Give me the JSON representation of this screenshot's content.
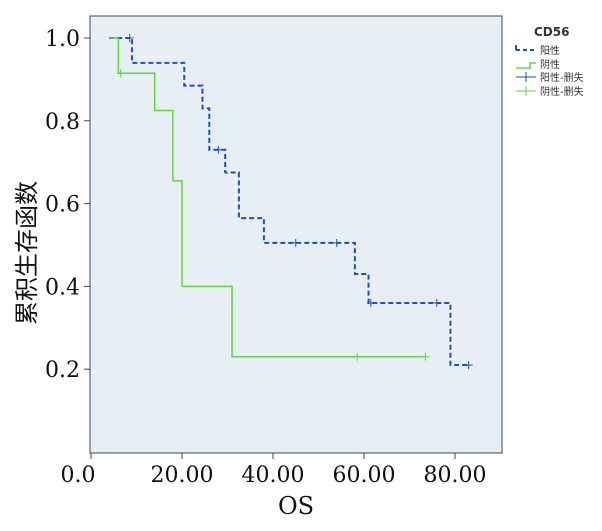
{
  "chart_data": {
    "type": "line",
    "subtype": "kaplan-meier",
    "xlabel": "OS",
    "ylabel": "累积生存函数",
    "xlim": [
      0,
      88
    ],
    "ylim": [
      0.0,
      1.0
    ],
    "x_ticks": [
      "0.0",
      "20.00",
      "40.00",
      "60.00",
      "80.00"
    ],
    "x_tick_values": [
      0,
      20,
      40,
      60,
      80
    ],
    "y_ticks": [
      "0.2",
      "0.4",
      "0.6",
      "0.8",
      "1.0"
    ],
    "y_tick_values": [
      0.2,
      0.4,
      0.6,
      0.8,
      1.0
    ],
    "grid": false,
    "background": "#e8eff4",
    "legend": {
      "title": "CD56",
      "position": "right-top",
      "entries": [
        "阳性",
        "阴性",
        "阳性-删失",
        "阴性-删失"
      ]
    },
    "series": [
      {
        "name": "阳性",
        "color": "#1f4fc4",
        "style": "dashed",
        "steps": [
          [
            4,
            1.0
          ],
          [
            9,
            0.94
          ],
          [
            20.5,
            0.885
          ],
          [
            24.5,
            0.83
          ],
          [
            26,
            0.73
          ],
          [
            29.5,
            0.675
          ],
          [
            32.5,
            0.565
          ],
          [
            38,
            0.505
          ],
          [
            58,
            0.43
          ],
          [
            61,
            0.36
          ],
          [
            79,
            0.21
          ],
          [
            83,
            0.21
          ]
        ],
        "censored": [
          [
            8.5,
            1.0
          ],
          [
            28,
            0.73
          ],
          [
            45,
            0.505
          ],
          [
            54,
            0.505
          ],
          [
            61.5,
            0.36
          ],
          [
            76,
            0.36
          ],
          [
            83,
            0.21
          ]
        ]
      },
      {
        "name": "阴性",
        "color": "#5fd640",
        "style": "solid",
        "steps": [
          [
            4,
            1.0
          ],
          [
            6,
            0.915
          ],
          [
            14,
            0.825
          ],
          [
            18,
            0.655
          ],
          [
            20,
            0.4
          ],
          [
            31,
            0.23
          ],
          [
            73.5,
            0.23
          ]
        ],
        "censored": [
          [
            6.5,
            0.915
          ],
          [
            58.5,
            0.23
          ],
          [
            73.5,
            0.23
          ]
        ]
      }
    ]
  }
}
